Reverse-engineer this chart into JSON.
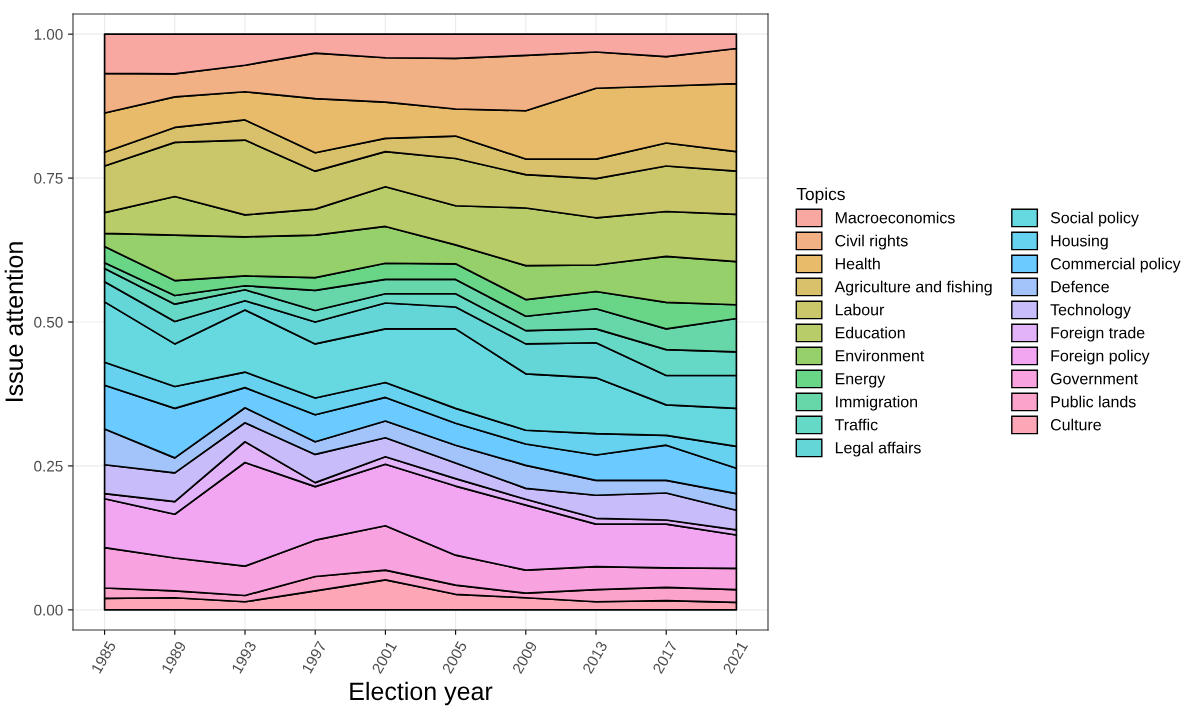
{
  "chart_data": {
    "type": "area",
    "stacked": true,
    "xlabel": "Election year",
    "ylabel": "Issue attention",
    "legend_title": "Topics",
    "x": [
      1985,
      1989,
      1993,
      1997,
      2001,
      2005,
      2009,
      2013,
      2017,
      2021
    ],
    "xlim": [
      1983.2,
      2022.8
    ],
    "xticks": [
      1985,
      1989,
      1993,
      1997,
      2001,
      2005,
      2009,
      2013,
      2017,
      2021
    ],
    "ylim": [
      -0.035,
      1.035
    ],
    "yticks": [
      {
        "value": 0,
        "label": "0.00"
      },
      {
        "value": 0.25,
        "label": "0.25"
      },
      {
        "value": 0.5,
        "label": "0.50"
      },
      {
        "value": 0.75,
        "label": "0.75"
      },
      {
        "value": 1,
        "label": "1.00"
      }
    ],
    "grid": true,
    "legend": "right",
    "series": [
      {
        "name": "Culture",
        "color": "#fca6b6",
        "values": [
          0.02,
          0.021,
          0.014,
          0.033,
          0.052,
          0.027,
          0.021,
          0.014,
          0.016,
          0.013
        ]
      },
      {
        "name": "Public lands",
        "color": "#fca3cc",
        "values": [
          0.018,
          0.012,
          0.011,
          0.025,
          0.017,
          0.016,
          0.008,
          0.021,
          0.023,
          0.022
        ]
      },
      {
        "name": "Government",
        "color": "#f9a2e0",
        "values": [
          0.07,
          0.057,
          0.051,
          0.063,
          0.077,
          0.052,
          0.04,
          0.04,
          0.034,
          0.037
        ]
      },
      {
        "name": "Foreign policy",
        "color": "#f2a6f2",
        "values": [
          0.085,
          0.076,
          0.18,
          0.093,
          0.107,
          0.12,
          0.113,
          0.074,
          0.076,
          0.058
        ]
      },
      {
        "name": "Foreign trade",
        "color": "#e2b3f8",
        "values": [
          0.009,
          0.022,
          0.036,
          0.007,
          0.013,
          0.013,
          0.01,
          0.01,
          0.007,
          0.009
        ]
      },
      {
        "name": "Technology",
        "color": "#c9bcfb",
        "values": [
          0.05,
          0.05,
          0.033,
          0.049,
          0.033,
          0.027,
          0.019,
          0.04,
          0.047,
          0.034
        ]
      },
      {
        "name": "Defence",
        "color": "#a2c4fb",
        "values": [
          0.062,
          0.026,
          0.026,
          0.022,
          0.029,
          0.031,
          0.04,
          0.026,
          0.022,
          0.029
        ]
      },
      {
        "name": "Commercial policy",
        "color": "#6bcaff",
        "values": [
          0.076,
          0.086,
          0.035,
          0.047,
          0.041,
          0.038,
          0.037,
          0.044,
          0.061,
          0.044
        ]
      },
      {
        "name": "Housing",
        "color": "#66d2ef",
        "values": [
          0.04,
          0.038,
          0.027,
          0.029,
          0.026,
          0.026,
          0.024,
          0.037,
          0.017,
          0.038
        ]
      },
      {
        "name": "Social policy",
        "color": "#66d8e0",
        "values": [
          0.105,
          0.074,
          0.108,
          0.094,
          0.093,
          0.138,
          0.098,
          0.097,
          0.053,
          0.066
        ]
      },
      {
        "name": "Legal affairs",
        "color": "#65d6d8",
        "values": [
          0.035,
          0.039,
          0.016,
          0.038,
          0.045,
          0.038,
          0.052,
          0.061,
          0.051,
          0.057
        ]
      },
      {
        "name": "Traffic",
        "color": "#66d8c6",
        "values": [
          0.023,
          0.03,
          0.019,
          0.02,
          0.016,
          0.023,
          0.023,
          0.024,
          0.045,
          0.041
        ]
      },
      {
        "name": "Immigration",
        "color": "#67d6a8",
        "values": [
          0.01,
          0.015,
          0.007,
          0.035,
          0.025,
          0.025,
          0.025,
          0.035,
          0.036,
          0.058
        ]
      },
      {
        "name": "Energy",
        "color": "#69d587",
        "values": [
          0.028,
          0.026,
          0.017,
          0.022,
          0.028,
          0.027,
          0.029,
          0.03,
          0.046,
          0.024
        ]
      },
      {
        "name": "Environment",
        "color": "#95d06a",
        "values": [
          0.023,
          0.079,
          0.068,
          0.074,
          0.064,
          0.033,
          0.059,
          0.046,
          0.08,
          0.075
        ]
      },
      {
        "name": "Education",
        "color": "#b8cd6a",
        "values": [
          0.036,
          0.067,
          0.038,
          0.045,
          0.069,
          0.068,
          0.1,
          0.082,
          0.078,
          0.082
        ]
      },
      {
        "name": "Labour",
        "color": "#cac66a",
        "values": [
          0.081,
          0.094,
          0.13,
          0.066,
          0.061,
          0.082,
          0.058,
          0.068,
          0.079,
          0.075
        ]
      },
      {
        "name": "Agriculture and fishing",
        "color": "#d9c06a",
        "values": [
          0.024,
          0.026,
          0.035,
          0.032,
          0.023,
          0.039,
          0.027,
          0.034,
          0.04,
          0.034
        ]
      },
      {
        "name": "Health",
        "color": "#e8bb6a",
        "values": [
          0.068,
          0.053,
          0.049,
          0.094,
          0.063,
          0.047,
          0.084,
          0.123,
          0.099,
          0.118
        ]
      },
      {
        "name": "Civil rights",
        "color": "#f2b184",
        "values": [
          0.069,
          0.04,
          0.046,
          0.079,
          0.077,
          0.088,
          0.096,
          0.063,
          0.051,
          0.061
        ]
      },
      {
        "name": "Macroeconomics",
        "color": "#f8a7a1",
        "values": [
          0.068,
          0.069,
          0.054,
          0.033,
          0.041,
          0.042,
          0.037,
          0.031,
          0.039,
          0.025
        ]
      }
    ]
  }
}
